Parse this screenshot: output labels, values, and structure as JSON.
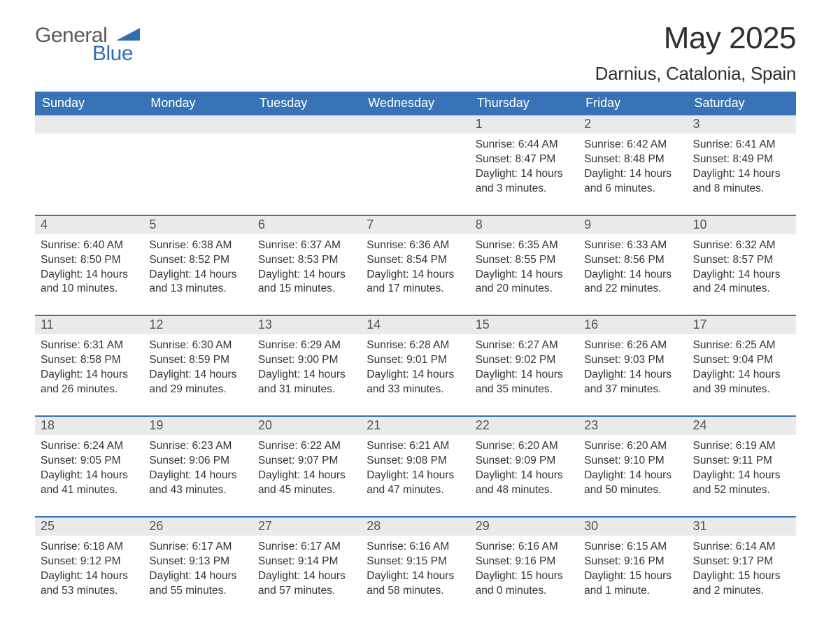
{
  "brand": {
    "word1": "General",
    "word2": "Blue",
    "triangle_color": "#2f6fb1",
    "text_color_1": "#5a5a5a",
    "text_color_2": "#2f6fb1"
  },
  "title": "May 2025",
  "location": "Darnius, Catalonia, Spain",
  "colors": {
    "header_bg": "#3874b5",
    "header_text": "#ffffff",
    "daynum_bg": "#eaeaea",
    "daynum_text": "#555555",
    "body_text": "#343434",
    "week_border": "#3874b5",
    "background": "#ffffff"
  },
  "weekdays": [
    "Sunday",
    "Monday",
    "Tuesday",
    "Wednesday",
    "Thursday",
    "Friday",
    "Saturday"
  ],
  "weeks": [
    [
      {
        "n": "",
        "sunrise": "",
        "sunset": "",
        "daylight": ""
      },
      {
        "n": "",
        "sunrise": "",
        "sunset": "",
        "daylight": ""
      },
      {
        "n": "",
        "sunrise": "",
        "sunset": "",
        "daylight": ""
      },
      {
        "n": "",
        "sunrise": "",
        "sunset": "",
        "daylight": ""
      },
      {
        "n": "1",
        "sunrise": "Sunrise: 6:44 AM",
        "sunset": "Sunset: 8:47 PM",
        "daylight": "Daylight: 14 hours and 3 minutes."
      },
      {
        "n": "2",
        "sunrise": "Sunrise: 6:42 AM",
        "sunset": "Sunset: 8:48 PM",
        "daylight": "Daylight: 14 hours and 6 minutes."
      },
      {
        "n": "3",
        "sunrise": "Sunrise: 6:41 AM",
        "sunset": "Sunset: 8:49 PM",
        "daylight": "Daylight: 14 hours and 8 minutes."
      }
    ],
    [
      {
        "n": "4",
        "sunrise": "Sunrise: 6:40 AM",
        "sunset": "Sunset: 8:50 PM",
        "daylight": "Daylight: 14 hours and 10 minutes."
      },
      {
        "n": "5",
        "sunrise": "Sunrise: 6:38 AM",
        "sunset": "Sunset: 8:52 PM",
        "daylight": "Daylight: 14 hours and 13 minutes."
      },
      {
        "n": "6",
        "sunrise": "Sunrise: 6:37 AM",
        "sunset": "Sunset: 8:53 PM",
        "daylight": "Daylight: 14 hours and 15 minutes."
      },
      {
        "n": "7",
        "sunrise": "Sunrise: 6:36 AM",
        "sunset": "Sunset: 8:54 PM",
        "daylight": "Daylight: 14 hours and 17 minutes."
      },
      {
        "n": "8",
        "sunrise": "Sunrise: 6:35 AM",
        "sunset": "Sunset: 8:55 PM",
        "daylight": "Daylight: 14 hours and 20 minutes."
      },
      {
        "n": "9",
        "sunrise": "Sunrise: 6:33 AM",
        "sunset": "Sunset: 8:56 PM",
        "daylight": "Daylight: 14 hours and 22 minutes."
      },
      {
        "n": "10",
        "sunrise": "Sunrise: 6:32 AM",
        "sunset": "Sunset: 8:57 PM",
        "daylight": "Daylight: 14 hours and 24 minutes."
      }
    ],
    [
      {
        "n": "11",
        "sunrise": "Sunrise: 6:31 AM",
        "sunset": "Sunset: 8:58 PM",
        "daylight": "Daylight: 14 hours and 26 minutes."
      },
      {
        "n": "12",
        "sunrise": "Sunrise: 6:30 AM",
        "sunset": "Sunset: 8:59 PM",
        "daylight": "Daylight: 14 hours and 29 minutes."
      },
      {
        "n": "13",
        "sunrise": "Sunrise: 6:29 AM",
        "sunset": "Sunset: 9:00 PM",
        "daylight": "Daylight: 14 hours and 31 minutes."
      },
      {
        "n": "14",
        "sunrise": "Sunrise: 6:28 AM",
        "sunset": "Sunset: 9:01 PM",
        "daylight": "Daylight: 14 hours and 33 minutes."
      },
      {
        "n": "15",
        "sunrise": "Sunrise: 6:27 AM",
        "sunset": "Sunset: 9:02 PM",
        "daylight": "Daylight: 14 hours and 35 minutes."
      },
      {
        "n": "16",
        "sunrise": "Sunrise: 6:26 AM",
        "sunset": "Sunset: 9:03 PM",
        "daylight": "Daylight: 14 hours and 37 minutes."
      },
      {
        "n": "17",
        "sunrise": "Sunrise: 6:25 AM",
        "sunset": "Sunset: 9:04 PM",
        "daylight": "Daylight: 14 hours and 39 minutes."
      }
    ],
    [
      {
        "n": "18",
        "sunrise": "Sunrise: 6:24 AM",
        "sunset": "Sunset: 9:05 PM",
        "daylight": "Daylight: 14 hours and 41 minutes."
      },
      {
        "n": "19",
        "sunrise": "Sunrise: 6:23 AM",
        "sunset": "Sunset: 9:06 PM",
        "daylight": "Daylight: 14 hours and 43 minutes."
      },
      {
        "n": "20",
        "sunrise": "Sunrise: 6:22 AM",
        "sunset": "Sunset: 9:07 PM",
        "daylight": "Daylight: 14 hours and 45 minutes."
      },
      {
        "n": "21",
        "sunrise": "Sunrise: 6:21 AM",
        "sunset": "Sunset: 9:08 PM",
        "daylight": "Daylight: 14 hours and 47 minutes."
      },
      {
        "n": "22",
        "sunrise": "Sunrise: 6:20 AM",
        "sunset": "Sunset: 9:09 PM",
        "daylight": "Daylight: 14 hours and 48 minutes."
      },
      {
        "n": "23",
        "sunrise": "Sunrise: 6:20 AM",
        "sunset": "Sunset: 9:10 PM",
        "daylight": "Daylight: 14 hours and 50 minutes."
      },
      {
        "n": "24",
        "sunrise": "Sunrise: 6:19 AM",
        "sunset": "Sunset: 9:11 PM",
        "daylight": "Daylight: 14 hours and 52 minutes."
      }
    ],
    [
      {
        "n": "25",
        "sunrise": "Sunrise: 6:18 AM",
        "sunset": "Sunset: 9:12 PM",
        "daylight": "Daylight: 14 hours and 53 minutes."
      },
      {
        "n": "26",
        "sunrise": "Sunrise: 6:17 AM",
        "sunset": "Sunset: 9:13 PM",
        "daylight": "Daylight: 14 hours and 55 minutes."
      },
      {
        "n": "27",
        "sunrise": "Sunrise: 6:17 AM",
        "sunset": "Sunset: 9:14 PM",
        "daylight": "Daylight: 14 hours and 57 minutes."
      },
      {
        "n": "28",
        "sunrise": "Sunrise: 6:16 AM",
        "sunset": "Sunset: 9:15 PM",
        "daylight": "Daylight: 14 hours and 58 minutes."
      },
      {
        "n": "29",
        "sunrise": "Sunrise: 6:16 AM",
        "sunset": "Sunset: 9:16 PM",
        "daylight": "Daylight: 15 hours and 0 minutes."
      },
      {
        "n": "30",
        "sunrise": "Sunrise: 6:15 AM",
        "sunset": "Sunset: 9:16 PM",
        "daylight": "Daylight: 15 hours and 1 minute."
      },
      {
        "n": "31",
        "sunrise": "Sunrise: 6:14 AM",
        "sunset": "Sunset: 9:17 PM",
        "daylight": "Daylight: 15 hours and 2 minutes."
      }
    ]
  ]
}
